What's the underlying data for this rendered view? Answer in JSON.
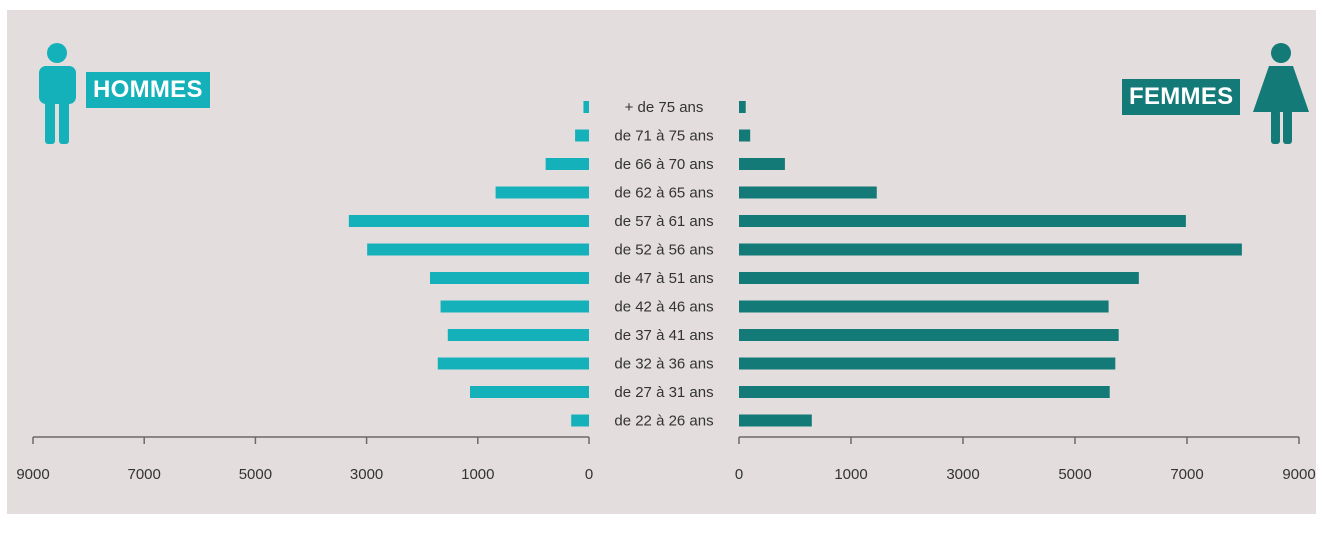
{
  "colors": {
    "men": "#14b1bb",
    "women": "#137a78",
    "axis": "#6a6a6a",
    "label": "#333333",
    "panel": "#e3dedd"
  },
  "legend": {
    "men_label": "HOMMES",
    "women_label": "FEMMES",
    "men_icon": "man-icon",
    "women_icon": "woman-icon"
  },
  "chart_data": {
    "type": "bar",
    "orientation": "horizontal",
    "categories": [
      "+ de 75 ans",
      "de 71 à 75 ans",
      "de 66 à 70 ans",
      "de 62 à 65 ans",
      "de 57 à 61 ans",
      "de 52 à 56 ans",
      "de 47 à 51 ans",
      "de 42 à 46 ans",
      "de 37 à 41 ans",
      "de 32 à 36 ans",
      "de 27 à 31 ans",
      "de 22 à 26 ans"
    ],
    "series": [
      {
        "name": "HOMMES",
        "values": [
          100,
          250,
          780,
          1680,
          4320,
          3990,
          2860,
          2670,
          2540,
          2720,
          2140,
          320
        ]
      },
      {
        "name": "FEMMES",
        "values": [
          120,
          200,
          820,
          2460,
          7980,
          8980,
          7140,
          6600,
          6780,
          6720,
          6620,
          1300
        ]
      }
    ],
    "left_axis": {
      "ticks": [
        "9000",
        "7000",
        "5000",
        "3000",
        "1000",
        "0"
      ],
      "range": [
        0,
        10000
      ]
    },
    "right_axis": {
      "ticks": [
        "0",
        "1000",
        "3000",
        "5000",
        "7000",
        "9000"
      ],
      "range": [
        0,
        10000
      ]
    }
  }
}
